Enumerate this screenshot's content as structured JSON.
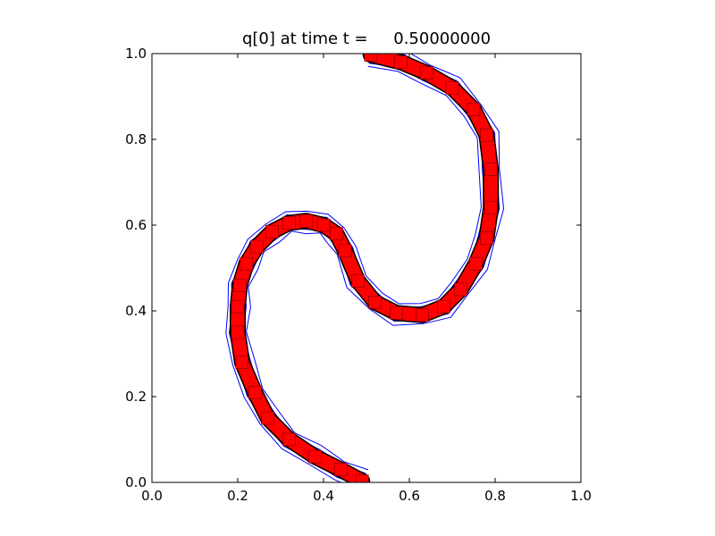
{
  "chart_data": {
    "type": "line",
    "title": "q[0] at time t =     0.50000000",
    "xlabel": "",
    "ylabel": "",
    "xlim": [
      0.0,
      1.0
    ],
    "ylim": [
      0.0,
      1.0
    ],
    "xticks": [
      "0.0",
      "0.2",
      "0.4",
      "0.6",
      "0.8",
      "1.0"
    ],
    "yticks": [
      "0.0",
      "0.2",
      "0.4",
      "0.6",
      "0.8",
      "1.0"
    ],
    "grid": false,
    "legend": "none",
    "colors": {
      "contours": "#0000ff",
      "reference": "#ff0000",
      "outline": "#000000"
    },
    "series": [
      {
        "style": "thick red curve",
        "x": [
          0.49,
          0.44,
          0.38,
          0.32,
          0.27,
          0.24,
          0.21,
          0.2,
          0.2,
          0.205,
          0.22,
          0.245,
          0.28,
          0.32,
          0.36,
          0.4,
          0.43,
          0.45,
          0.48,
          0.52,
          0.57,
          0.63,
          0.68,
          0.72,
          0.755,
          0.78,
          0.79,
          0.79,
          0.78,
          0.75,
          0.7,
          0.64,
          0.58,
          0.51
        ],
        "y": [
          0.003,
          0.03,
          0.06,
          0.1,
          0.15,
          0.21,
          0.28,
          0.35,
          0.41,
          0.46,
          0.51,
          0.55,
          0.585,
          0.605,
          0.61,
          0.6,
          0.58,
          0.54,
          0.47,
          0.42,
          0.395,
          0.39,
          0.41,
          0.45,
          0.51,
          0.57,
          0.64,
          0.73,
          0.81,
          0.87,
          0.92,
          0.955,
          0.98,
          0.997
        ]
      }
    ],
    "contour_offsets": [
      -0.025,
      -0.016,
      -0.008,
      0.008,
      0.016,
      0.025
    ]
  }
}
